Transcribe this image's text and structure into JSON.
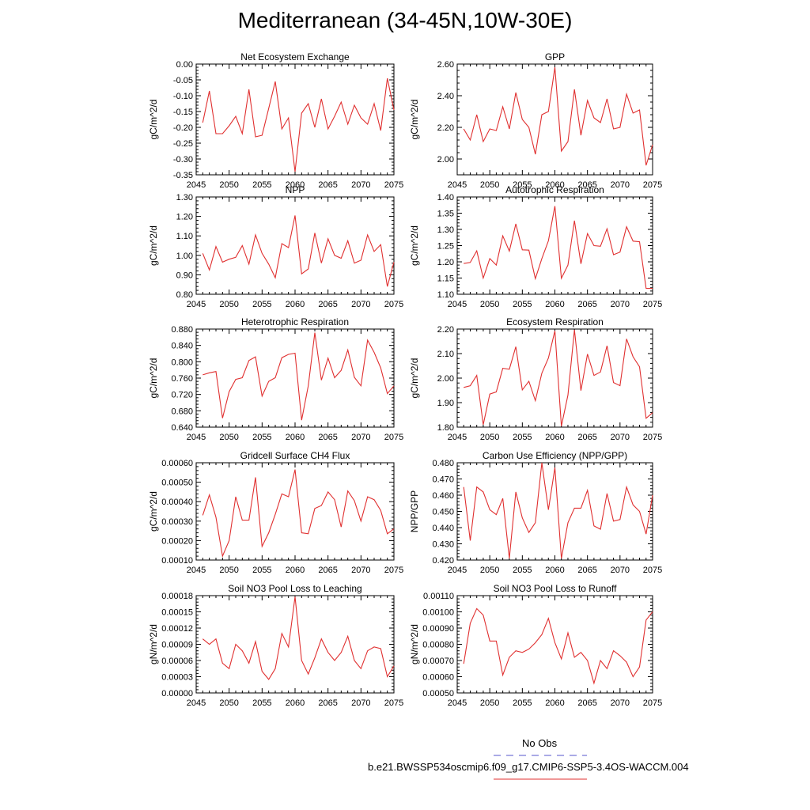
{
  "title": "Mediterranean (34-45N,10W-30E)",
  "legend": {
    "obs_label": "No Obs",
    "obs_color": "#5555cc",
    "model_label": "b.e21.BWSSP534oscmip6.f09_g17.CMIP6-SSP5-3.4OS-WACCM.004",
    "model_color": "#e03030"
  },
  "chart_data": [
    {
      "type": "line",
      "title": "Net Ecosystem Exchange",
      "ylabel": "gC/m^2/d",
      "xlim": [
        2045,
        2075
      ],
      "ylim": [
        -0.35,
        0.0
      ],
      "xticks": [
        2045,
        2050,
        2055,
        2060,
        2065,
        2070,
        2075
      ],
      "yticks": [
        0.0,
        -0.05,
        -0.1,
        -0.15,
        -0.2,
        -0.25,
        -0.3,
        -0.35
      ],
      "ytick_labels": [
        "0.00",
        "-0.05",
        "-0.10",
        "-0.15",
        "-0.20",
        "-0.25",
        "-0.30",
        "-0.35"
      ],
      "x": [
        2046,
        2047,
        2048,
        2049,
        2050,
        2051,
        2052,
        2053,
        2054,
        2055,
        2056,
        2057,
        2058,
        2059,
        2060,
        2061,
        2062,
        2063,
        2064,
        2065,
        2066,
        2067,
        2068,
        2069,
        2070,
        2071,
        2072,
        2073,
        2074,
        2075
      ],
      "values": [
        -0.185,
        -0.085,
        -0.22,
        -0.22,
        -0.195,
        -0.165,
        -0.22,
        -0.08,
        -0.23,
        -0.225,
        -0.14,
        -0.055,
        -0.205,
        -0.17,
        -0.34,
        -0.155,
        -0.125,
        -0.2,
        -0.11,
        -0.205,
        -0.165,
        -0.12,
        -0.19,
        -0.13,
        -0.17,
        -0.19,
        -0.125,
        -0.21,
        -0.045,
        -0.145
      ]
    },
    {
      "type": "line",
      "title": "GPP",
      "ylabel": "gC/m^2/d",
      "xlim": [
        2045,
        2075
      ],
      "ylim": [
        1.9,
        2.6
      ],
      "xticks": [
        2045,
        2050,
        2055,
        2060,
        2065,
        2070,
        2075
      ],
      "yticks": [
        2.0,
        2.2,
        2.4,
        2.6
      ],
      "ytick_labels": [
        "2.00",
        "2.20",
        "2.40",
        "2.60"
      ],
      "x": [
        2046,
        2047,
        2048,
        2049,
        2050,
        2051,
        2052,
        2053,
        2054,
        2055,
        2056,
        2057,
        2058,
        2059,
        2060,
        2061,
        2062,
        2063,
        2064,
        2065,
        2066,
        2067,
        2068,
        2069,
        2070,
        2071,
        2072,
        2073,
        2074,
        2075
      ],
      "values": [
        2.19,
        2.12,
        2.28,
        2.11,
        2.19,
        2.18,
        2.33,
        2.19,
        2.42,
        2.25,
        2.2,
        2.03,
        2.28,
        2.3,
        2.58,
        2.05,
        2.11,
        2.44,
        2.15,
        2.37,
        2.26,
        2.23,
        2.38,
        2.19,
        2.2,
        2.41,
        2.29,
        2.31,
        1.96,
        2.09
      ]
    },
    {
      "type": "line",
      "title": "NPP",
      "ylabel": "gC/m^2/d",
      "xlim": [
        2045,
        2075
      ],
      "ylim": [
        0.8,
        1.3
      ],
      "xticks": [
        2045,
        2050,
        2055,
        2060,
        2065,
        2070,
        2075
      ],
      "yticks": [
        0.8,
        0.9,
        1.0,
        1.1,
        1.2,
        1.3
      ],
      "ytick_labels": [
        "0.80",
        "0.90",
        "1.00",
        "1.10",
        "1.20",
        "1.30"
      ],
      "x": [
        2046,
        2047,
        2048,
        2049,
        2050,
        2051,
        2052,
        2053,
        2054,
        2055,
        2056,
        2057,
        2058,
        2059,
        2060,
        2061,
        2062,
        2063,
        2064,
        2065,
        2066,
        2067,
        2068,
        2069,
        2070,
        2071,
        2072,
        2073,
        2074,
        2075
      ],
      "values": [
        1.01,
        0.925,
        1.045,
        0.965,
        0.98,
        0.99,
        1.05,
        0.955,
        1.105,
        1.01,
        0.955,
        0.885,
        1.06,
        1.04,
        1.205,
        0.905,
        0.93,
        1.115,
        0.96,
        1.085,
        1.0,
        0.985,
        1.075,
        0.96,
        0.975,
        1.105,
        1.02,
        1.055,
        0.84,
        0.965
      ]
    },
    {
      "type": "line",
      "title": "Autotrophic Respiration",
      "ylabel": "gC/m^2/d",
      "xlim": [
        2045,
        2075
      ],
      "ylim": [
        1.1,
        1.4
      ],
      "xticks": [
        2045,
        2050,
        2055,
        2060,
        2065,
        2070,
        2075
      ],
      "yticks": [
        1.1,
        1.15,
        1.2,
        1.25,
        1.3,
        1.35,
        1.4
      ],
      "ytick_labels": [
        "1.10",
        "1.15",
        "1.20",
        "1.25",
        "1.30",
        "1.35",
        "1.40"
      ],
      "x": [
        2046,
        2047,
        2048,
        2049,
        2050,
        2051,
        2052,
        2053,
        2054,
        2055,
        2056,
        2057,
        2058,
        2059,
        2060,
        2061,
        2062,
        2063,
        2064,
        2065,
        2066,
        2067,
        2068,
        2069,
        2070,
        2071,
        2072,
        2073,
        2074,
        2075
      ],
      "values": [
        1.195,
        1.198,
        1.234,
        1.15,
        1.21,
        1.19,
        1.28,
        1.233,
        1.317,
        1.237,
        1.236,
        1.148,
        1.21,
        1.265,
        1.372,
        1.149,
        1.19,
        1.327,
        1.194,
        1.287,
        1.25,
        1.248,
        1.302,
        1.222,
        1.23,
        1.308,
        1.264,
        1.262,
        1.118,
        1.118
      ]
    },
    {
      "type": "line",
      "title": "Heterotrophic Respiration",
      "ylabel": "gC/m^2/d",
      "xlim": [
        2045,
        2075
      ],
      "ylim": [
        0.64,
        0.88
      ],
      "xticks": [
        2045,
        2050,
        2055,
        2060,
        2065,
        2070,
        2075
      ],
      "yticks": [
        0.64,
        0.68,
        0.72,
        0.76,
        0.8,
        0.84,
        0.88
      ],
      "ytick_labels": [
        "0.640",
        "0.680",
        "0.720",
        "0.760",
        "0.800",
        "0.840",
        "0.880"
      ],
      "x": [
        2046,
        2047,
        2048,
        2049,
        2050,
        2051,
        2052,
        2053,
        2054,
        2055,
        2056,
        2057,
        2058,
        2059,
        2060,
        2061,
        2062,
        2063,
        2064,
        2065,
        2066,
        2067,
        2068,
        2069,
        2070,
        2071,
        2072,
        2073,
        2074,
        2075
      ],
      "values": [
        0.768,
        0.773,
        0.776,
        0.662,
        0.727,
        0.757,
        0.761,
        0.803,
        0.812,
        0.716,
        0.752,
        0.761,
        0.81,
        0.818,
        0.821,
        0.657,
        0.741,
        0.871,
        0.755,
        0.809,
        0.761,
        0.779,
        0.829,
        0.762,
        0.741,
        0.853,
        0.823,
        0.785,
        0.722,
        0.741
      ]
    },
    {
      "type": "line",
      "title": "Ecosystem Respiration",
      "ylabel": "gC/m^2/d",
      "xlim": [
        2045,
        2075
      ],
      "ylim": [
        1.8,
        2.2
      ],
      "xticks": [
        2045,
        2050,
        2055,
        2060,
        2065,
        2070,
        2075
      ],
      "yticks": [
        1.8,
        1.9,
        2.0,
        2.1,
        2.2
      ],
      "ytick_labels": [
        "1.80",
        "1.90",
        "2.00",
        "2.10",
        "2.20"
      ],
      "x": [
        2046,
        2047,
        2048,
        2049,
        2050,
        2051,
        2052,
        2053,
        2054,
        2055,
        2056,
        2057,
        2058,
        2059,
        2060,
        2061,
        2062,
        2063,
        2064,
        2065,
        2066,
        2067,
        2068,
        2069,
        2070,
        2071,
        2072,
        2073,
        2074,
        2075
      ],
      "values": [
        1.962,
        1.969,
        2.011,
        1.81,
        1.935,
        1.944,
        2.04,
        2.036,
        2.128,
        1.952,
        1.987,
        1.908,
        2.02,
        2.082,
        2.193,
        1.804,
        1.931,
        2.197,
        1.949,
        2.098,
        2.011,
        2.025,
        2.132,
        1.982,
        1.969,
        2.16,
        2.087,
        2.046,
        1.836,
        1.859
      ]
    },
    {
      "type": "line",
      "title": "Gridcell Surface CH4 Flux",
      "ylabel": "gC/m^2/d",
      "xlim": [
        2045,
        2075
      ],
      "ylim": [
        0.0001,
        0.0006
      ],
      "xticks": [
        2045,
        2050,
        2055,
        2060,
        2065,
        2070,
        2075
      ],
      "yticks": [
        0.0001,
        0.0002,
        0.0003,
        0.0004,
        0.0005,
        0.0006
      ],
      "ytick_labels": [
        "0.00010",
        "0.00020",
        "0.00030",
        "0.00040",
        "0.00050",
        "0.00060"
      ],
      "x": [
        2046,
        2047,
        2048,
        2049,
        2050,
        2051,
        2052,
        2053,
        2054,
        2055,
        2056,
        2057,
        2058,
        2059,
        2060,
        2061,
        2062,
        2063,
        2064,
        2065,
        2066,
        2067,
        2068,
        2069,
        2070,
        2071,
        2072,
        2073,
        2074,
        2075
      ],
      "values": [
        0.00033,
        0.000435,
        0.00032,
        0.00012,
        0.0002,
        0.000425,
        0.000305,
        0.000305,
        0.000525,
        0.00017,
        0.00024,
        0.000335,
        0.00044,
        0.000425,
        0.000565,
        0.00024,
        0.000235,
        0.000365,
        0.00038,
        0.00045,
        0.00041,
        0.00027,
        0.000455,
        0.000405,
        0.0003,
        0.000425,
        0.00041,
        0.000355,
        0.000235,
        0.00026
      ]
    },
    {
      "type": "line",
      "title": "Carbon Use Efficiency (NPP/GPP)",
      "ylabel": "NPP/GPP",
      "xlim": [
        2045,
        2075
      ],
      "ylim": [
        0.42,
        0.48
      ],
      "xticks": [
        2045,
        2050,
        2055,
        2060,
        2065,
        2070,
        2075
      ],
      "yticks": [
        0.42,
        0.43,
        0.44,
        0.45,
        0.46,
        0.47,
        0.48
      ],
      "ytick_labels": [
        "0.420",
        "0.430",
        "0.440",
        "0.450",
        "0.460",
        "0.470",
        "0.480"
      ],
      "x": [
        2046,
        2047,
        2048,
        2049,
        2050,
        2051,
        2052,
        2053,
        2054,
        2055,
        2056,
        2057,
        2058,
        2059,
        2060,
        2061,
        2062,
        2063,
        2064,
        2065,
        2066,
        2067,
        2068,
        2069,
        2070,
        2071,
        2072,
        2073,
        2074,
        2075
      ],
      "values": [
        0.465,
        0.432,
        0.465,
        0.462,
        0.451,
        0.448,
        0.458,
        0.421,
        0.462,
        0.446,
        0.437,
        0.443,
        0.48,
        0.451,
        0.477,
        0.421,
        0.443,
        0.452,
        0.452,
        0.463,
        0.441,
        0.439,
        0.461,
        0.444,
        0.445,
        0.465,
        0.454,
        0.45,
        0.436,
        0.46
      ]
    },
    {
      "type": "line",
      "title": "Soil NO3 Pool Loss to Leaching",
      "ylabel": "gN/m^2/d",
      "xlim": [
        2045,
        2075
      ],
      "ylim": [
        0.0,
        0.00018
      ],
      "xticks": [
        2045,
        2050,
        2055,
        2060,
        2065,
        2070,
        2075
      ],
      "yticks": [
        0.0,
        3e-05,
        6e-05,
        9e-05,
        0.00012,
        0.00015,
        0.00018
      ],
      "ytick_labels": [
        "0.00000",
        "0.00003",
        "0.00006",
        "0.00009",
        "0.00012",
        "0.00015",
        "0.00018"
      ],
      "x": [
        2046,
        2047,
        2048,
        2049,
        2050,
        2051,
        2052,
        2053,
        2054,
        2055,
        2056,
        2057,
        2058,
        2059,
        2060,
        2061,
        2062,
        2063,
        2064,
        2065,
        2066,
        2067,
        2068,
        2069,
        2070,
        2071,
        2072,
        2073,
        2074,
        2075
      ],
      "values": [
        0.0001,
        9e-05,
        0.0001,
        5.5e-05,
        4.5e-05,
        9e-05,
        7.8e-05,
        5.5e-05,
        9.5e-05,
        4e-05,
        2.5e-05,
        4.5e-05,
        0.00011,
        8.5e-05,
        0.000178,
        6e-05,
        3.5e-05,
        6.5e-05,
        0.0001,
        7.5e-05,
        6e-05,
        7.5e-05,
        0.000105,
        6e-05,
        4.5e-05,
        7.8e-05,
        8.5e-05,
        8.2e-05,
        3e-05,
        5e-05
      ]
    },
    {
      "type": "line",
      "title": "Soil NO3 Pool Loss to Runoff",
      "ylabel": "gN/m^2/d",
      "xlim": [
        2045,
        2075
      ],
      "ylim": [
        0.0005,
        0.0011
      ],
      "xticks": [
        2045,
        2050,
        2055,
        2060,
        2065,
        2070,
        2075
      ],
      "yticks": [
        0.0005,
        0.0006,
        0.0007,
        0.0008,
        0.0009,
        0.001,
        0.0011
      ],
      "ytick_labels": [
        "0.00050",
        "0.00060",
        "0.00070",
        "0.00080",
        "0.00090",
        "0.00100",
        "0.00110"
      ],
      "x": [
        2046,
        2047,
        2048,
        2049,
        2050,
        2051,
        2052,
        2053,
        2054,
        2055,
        2056,
        2057,
        2058,
        2059,
        2060,
        2061,
        2062,
        2063,
        2064,
        2065,
        2066,
        2067,
        2068,
        2069,
        2070,
        2071,
        2072,
        2073,
        2074,
        2075
      ],
      "values": [
        0.00068,
        0.00093,
        0.00102,
        0.00098,
        0.00082,
        0.00082,
        0.00061,
        0.00072,
        0.00076,
        0.00075,
        0.00077,
        0.00081,
        0.00086,
        0.00096,
        0.00081,
        0.00071,
        0.00087,
        0.00072,
        0.00075,
        0.0007,
        0.00056,
        0.0007,
        0.00065,
        0.00076,
        0.00073,
        0.00069,
        0.0006,
        0.00066,
        0.00095,
        0.001
      ]
    }
  ]
}
